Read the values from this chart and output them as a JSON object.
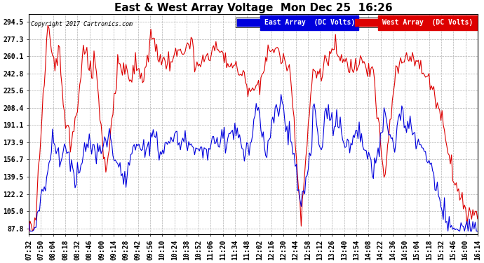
{
  "title": "East & West Array Voltage  Mon Dec 25  16:26",
  "copyright": "Copyright 2017 Cartronics.com",
  "east_label": "East Array  (DC Volts)",
  "west_label": "West Array  (DC Volts)",
  "yticks": [
    87.8,
    105.0,
    122.2,
    139.5,
    156.7,
    173.9,
    191.1,
    208.4,
    225.6,
    242.8,
    260.1,
    277.3,
    294.5
  ],
  "ymin": 82,
  "ymax": 302,
  "bg_color": "#ffffff",
  "plot_bg": "#ffffff",
  "east_color": "#0000dd",
  "west_color": "#dd0000",
  "title_fontsize": 11,
  "tick_fontsize": 7,
  "xtick_labels": [
    "07:32",
    "07:50",
    "08:04",
    "08:18",
    "08:32",
    "08:46",
    "09:00",
    "09:14",
    "09:28",
    "09:42",
    "09:56",
    "10:10",
    "10:24",
    "10:38",
    "10:52",
    "11:06",
    "11:20",
    "11:34",
    "11:48",
    "12:02",
    "12:16",
    "12:30",
    "12:44",
    "12:58",
    "13:12",
    "13:26",
    "13:40",
    "13:54",
    "14:08",
    "14:22",
    "14:36",
    "14:50",
    "15:04",
    "15:18",
    "15:32",
    "15:46",
    "16:00",
    "16:14"
  ]
}
